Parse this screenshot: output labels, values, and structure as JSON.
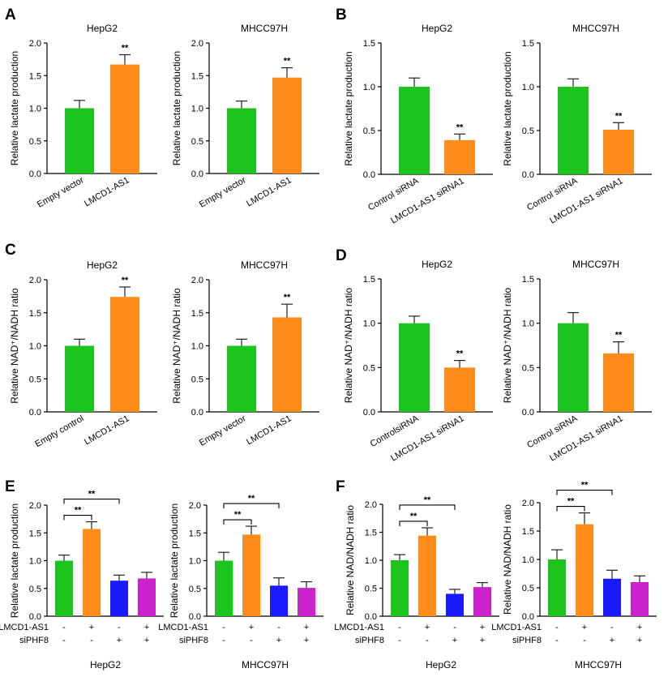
{
  "panel_letters": [
    "A",
    "B",
    "C",
    "D",
    "E",
    "F"
  ],
  "chart_data": [
    {
      "panel": "A",
      "type": "bar",
      "title": "HepG2",
      "ylabel": "Relative lactate production",
      "categories": [
        "Empty vector",
        "LMCD1-AS1"
      ],
      "values": [
        1.0,
        1.67
      ],
      "errors": [
        0.12,
        0.15
      ],
      "colors": [
        "#1ec41e",
        "#ff8c1a"
      ],
      "yticks": [
        "0.0",
        "0.5",
        "1.0",
        "1.5",
        "2.0"
      ],
      "ylim": [
        0,
        2.0
      ],
      "significance": [
        "",
        "**"
      ]
    },
    {
      "panel": "A",
      "type": "bar",
      "title": "MHCC97H",
      "ylabel": "Relative lactate production",
      "categories": [
        "Empty vector",
        "LMCD1-AS1"
      ],
      "values": [
        1.0,
        1.47
      ],
      "errors": [
        0.11,
        0.15
      ],
      "colors": [
        "#1ec41e",
        "#ff8c1a"
      ],
      "yticks": [
        "0.0",
        "0.5",
        "1.0",
        "1.5",
        "2.0"
      ],
      "ylim": [
        0,
        2.0
      ],
      "significance": [
        "",
        "**"
      ]
    },
    {
      "panel": "B",
      "type": "bar",
      "title": "HepG2",
      "ylabel": "Relative lactate production",
      "categories": [
        "Control siRNA",
        "LMCD1-AS1 siRNA1"
      ],
      "values": [
        1.0,
        0.39
      ],
      "errors": [
        0.1,
        0.07
      ],
      "colors": [
        "#1ec41e",
        "#ff8c1a"
      ],
      "yticks": [
        "0.0",
        "0.5",
        "1.0",
        "1.5"
      ],
      "ylim": [
        0,
        1.5
      ],
      "significance": [
        "",
        "**"
      ]
    },
    {
      "panel": "B",
      "type": "bar",
      "title": "MHCC97H",
      "ylabel": "Relative lactate production",
      "categories": [
        "Control siRNA",
        "LMCD1-AS1 siRNA1"
      ],
      "values": [
        1.0,
        0.51
      ],
      "errors": [
        0.09,
        0.08
      ],
      "colors": [
        "#1ec41e",
        "#ff8c1a"
      ],
      "yticks": [
        "0.0",
        "0.5",
        "1.0",
        "1.5"
      ],
      "ylim": [
        0,
        1.5
      ],
      "significance": [
        "",
        "**"
      ]
    },
    {
      "panel": "C",
      "type": "bar",
      "title": "HepG2",
      "ylabel": "Relative NAD⁺/NADH ratio",
      "categories": [
        "Empty control",
        "LMCD1-AS1"
      ],
      "values": [
        1.0,
        1.74
      ],
      "errors": [
        0.1,
        0.15
      ],
      "colors": [
        "#1ec41e",
        "#ff8c1a"
      ],
      "yticks": [
        "0.0",
        "0.5",
        "1.0",
        "1.5",
        "2.0"
      ],
      "ylim": [
        0,
        2.0
      ],
      "significance": [
        "",
        "**"
      ]
    },
    {
      "panel": "C",
      "type": "bar",
      "title": "MHCC97H",
      "ylabel": "Relative NAD⁺/NADH ratio",
      "categories": [
        "Empty vector",
        "LMCD1-AS1"
      ],
      "values": [
        1.0,
        1.43
      ],
      "errors": [
        0.1,
        0.2
      ],
      "colors": [
        "#1ec41e",
        "#ff8c1a"
      ],
      "yticks": [
        "0.0",
        "0.5",
        "1.0",
        "1.5",
        "2.0"
      ],
      "ylim": [
        0,
        2.0
      ],
      "significance": [
        "",
        "**"
      ]
    },
    {
      "panel": "D",
      "type": "bar",
      "title": "HepG2",
      "ylabel": "Relative NAD⁺/NADH ratio",
      "categories": [
        "ControlsiRNA",
        "LMCD1-AS1 siRNA1"
      ],
      "values": [
        1.0,
        0.5
      ],
      "errors": [
        0.08,
        0.08
      ],
      "colors": [
        "#1ec41e",
        "#ff8c1a"
      ],
      "yticks": [
        "0.0",
        "0.5",
        "1.0",
        "1.5"
      ],
      "ylim": [
        0,
        1.5
      ],
      "significance": [
        "",
        "**"
      ]
    },
    {
      "panel": "D",
      "type": "bar",
      "title": "MHCC97H",
      "ylabel": "Relative NAD⁺/NADH ratio",
      "categories": [
        "Control siRNA",
        "LMCD1-AS1 siRNA1"
      ],
      "values": [
        1.0,
        0.66
      ],
      "errors": [
        0.12,
        0.13
      ],
      "colors": [
        "#1ec41e",
        "#ff8c1a"
      ],
      "yticks": [
        "0.0",
        "0.5",
        "1.0",
        "1.5"
      ],
      "ylim": [
        0,
        1.5
      ],
      "significance": [
        "",
        "**"
      ]
    },
    {
      "panel": "E",
      "type": "bar",
      "title": "",
      "ylabel": "Relative lactate production",
      "group_label": "HepG2",
      "values": [
        1.0,
        1.57,
        0.64,
        0.68
      ],
      "errors": [
        0.1,
        0.13,
        0.1,
        0.11
      ],
      "colors": [
        "#1ec41e",
        "#ff8c1a",
        "#1a1aff",
        "#cc22cc"
      ],
      "yticks": [
        "0.0",
        "0.5",
        "1.0",
        "1.5",
        "2.0"
      ],
      "ylim": [
        0,
        2.0
      ],
      "rows": [
        {
          "label": "LMCD1-AS1",
          "signs": [
            "-",
            "+",
            "-",
            "+"
          ]
        },
        {
          "label": "siPHF8",
          "signs": [
            "-",
            "-",
            "+",
            "+"
          ]
        }
      ],
      "brackets": [
        {
          "from": 0,
          "to": 1,
          "label": "**"
        },
        {
          "from": 0,
          "to": 2,
          "label": "**"
        }
      ]
    },
    {
      "panel": "E",
      "type": "bar",
      "title": "",
      "ylabel": "Relative lactate production",
      "group_label": "MHCC97H",
      "values": [
        1.0,
        1.47,
        0.55,
        0.51
      ],
      "errors": [
        0.15,
        0.15,
        0.14,
        0.11
      ],
      "colors": [
        "#1ec41e",
        "#ff8c1a",
        "#1a1aff",
        "#cc22cc"
      ],
      "yticks": [
        "0.0",
        "0.5",
        "1.0",
        "1.5",
        "2.0"
      ],
      "ylim": [
        0,
        2.0
      ],
      "rows": [
        {
          "label": "LMCD1-AS1",
          "signs": [
            "-",
            "+",
            "-",
            "+"
          ]
        },
        {
          "label": "siPHF8",
          "signs": [
            "-",
            "-",
            "+",
            "+"
          ]
        }
      ],
      "brackets": [
        {
          "from": 0,
          "to": 1,
          "label": "**"
        },
        {
          "from": 0,
          "to": 2,
          "label": "**"
        }
      ]
    },
    {
      "panel": "F",
      "type": "bar",
      "title": "",
      "ylabel": "Relative NAD/NADH ratio",
      "group_label": "HepG2",
      "values": [
        1.0,
        1.44,
        0.4,
        0.52
      ],
      "errors": [
        0.1,
        0.14,
        0.08,
        0.08
      ],
      "colors": [
        "#1ec41e",
        "#ff8c1a",
        "#1a1aff",
        "#cc22cc"
      ],
      "yticks": [
        "0.0",
        "0.5",
        "1.0",
        "1.5",
        "2.0"
      ],
      "ylim": [
        0,
        2.0
      ],
      "rows": [
        {
          "label": "LMCD1-AS1",
          "signs": [
            "-",
            "+",
            "-",
            "+"
          ]
        },
        {
          "label": "siPHF8",
          "signs": [
            "-",
            "-",
            "+",
            "+"
          ]
        }
      ],
      "brackets": [
        {
          "from": 0,
          "to": 1,
          "label": "**"
        },
        {
          "from": 0,
          "to": 2,
          "label": "**"
        }
      ]
    },
    {
      "panel": "F",
      "type": "bar",
      "title": "",
      "ylabel": "Relative NAD/NADH ratio",
      "group_label": "MHCC97H",
      "values": [
        1.0,
        1.62,
        0.66,
        0.6
      ],
      "errors": [
        0.17,
        0.2,
        0.15,
        0.11
      ],
      "colors": [
        "#1ec41e",
        "#ff8c1a",
        "#1a1aff",
        "#cc22cc"
      ],
      "yticks": [
        "0.0",
        "0.5",
        "1.0",
        "1.5",
        "2.0"
      ],
      "ylim": [
        0,
        2.0
      ],
      "rows": [
        {
          "label": "LMCD1-AS1",
          "signs": [
            "-",
            "+",
            "-",
            "+"
          ]
        },
        {
          "label": "siPHF8",
          "signs": [
            "-",
            "-",
            "+",
            "+"
          ]
        }
      ],
      "brackets": [
        {
          "from": 0,
          "to": 1,
          "label": "**"
        },
        {
          "from": 0,
          "to": 2,
          "label": "**"
        }
      ]
    }
  ]
}
